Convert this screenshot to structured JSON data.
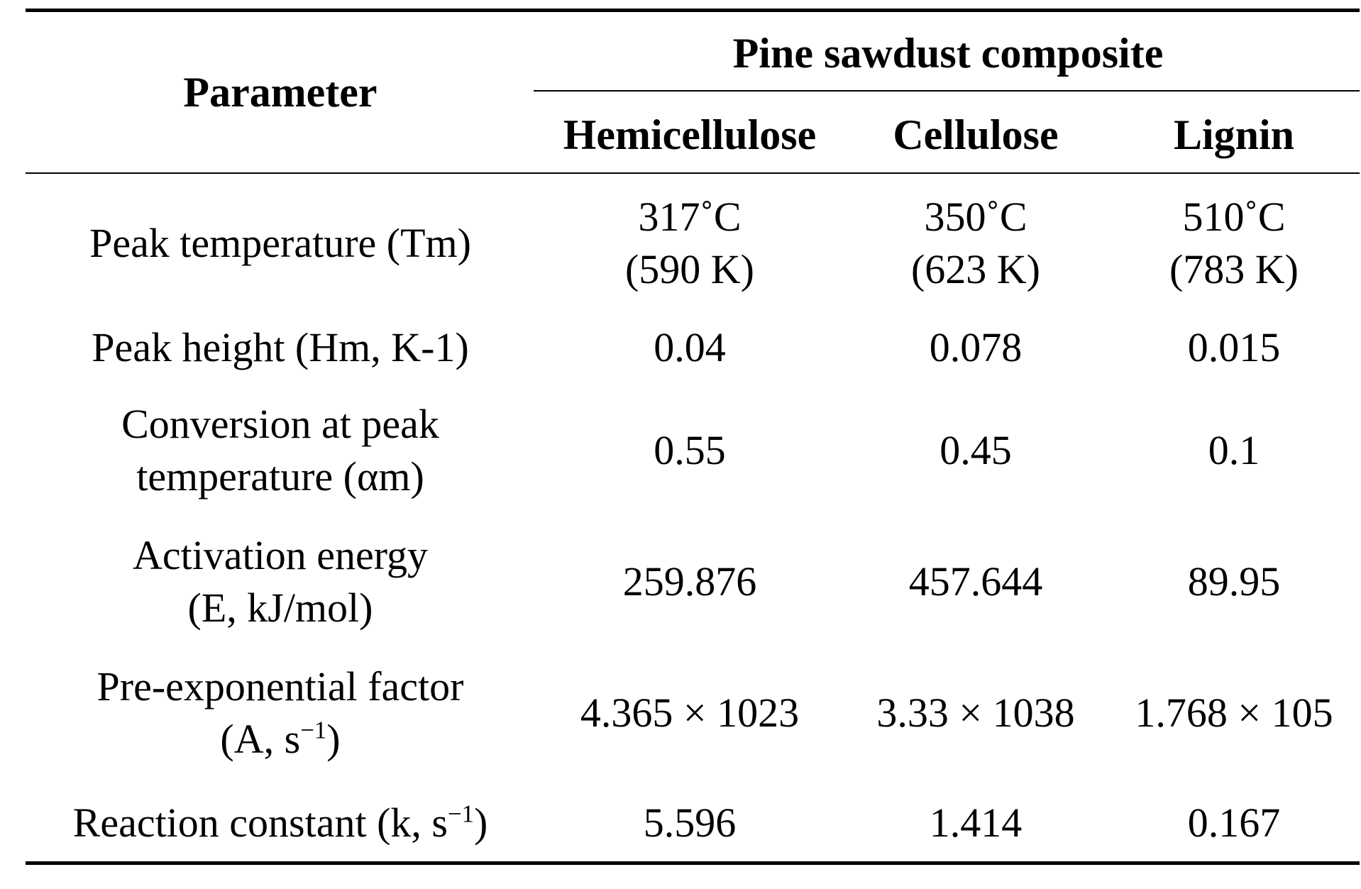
{
  "header": {
    "parameter": "Parameter",
    "group": "Pine sawdust composite",
    "columns": [
      "Hemicellulose",
      "Cellulose",
      "Lignin"
    ]
  },
  "rows": [
    {
      "param_lines": [
        "Peak temperature (Tm)"
      ],
      "values": [
        [
          "317˚C",
          "(590 K)"
        ],
        [
          "350˚C",
          "(623 K)"
        ],
        [
          "510˚C",
          "(783 K)"
        ]
      ]
    },
    {
      "param_lines": [
        "Peak height (Hm, K-1)"
      ],
      "values": [
        [
          "0.04"
        ],
        [
          "0.078"
        ],
        [
          "0.015"
        ]
      ]
    },
    {
      "param_lines": [
        "Conversion at peak",
        "temperature (αm)"
      ],
      "values": [
        [
          "0.55"
        ],
        [
          "0.45"
        ],
        [
          "0.1"
        ]
      ]
    },
    {
      "param_lines": [
        "Activation energy",
        "(E, kJ/mol)"
      ],
      "values": [
        [
          "259.876"
        ],
        [
          "457.644"
        ],
        [
          "89.95"
        ]
      ]
    },
    {
      "param_lines": [
        "Pre-exponential factor",
        "(A, s",
        "−1",
        ")"
      ],
      "values": [
        [
          "4.365 × 1023"
        ],
        [
          "3.33 × 1038"
        ],
        [
          "1.768 × 105"
        ]
      ]
    },
    {
      "param_lines": [
        "Reaction constant (k, s",
        "−1",
        ")"
      ],
      "values": [
        [
          "5.596"
        ],
        [
          "1.414"
        ],
        [
          "0.167"
        ]
      ]
    }
  ]
}
